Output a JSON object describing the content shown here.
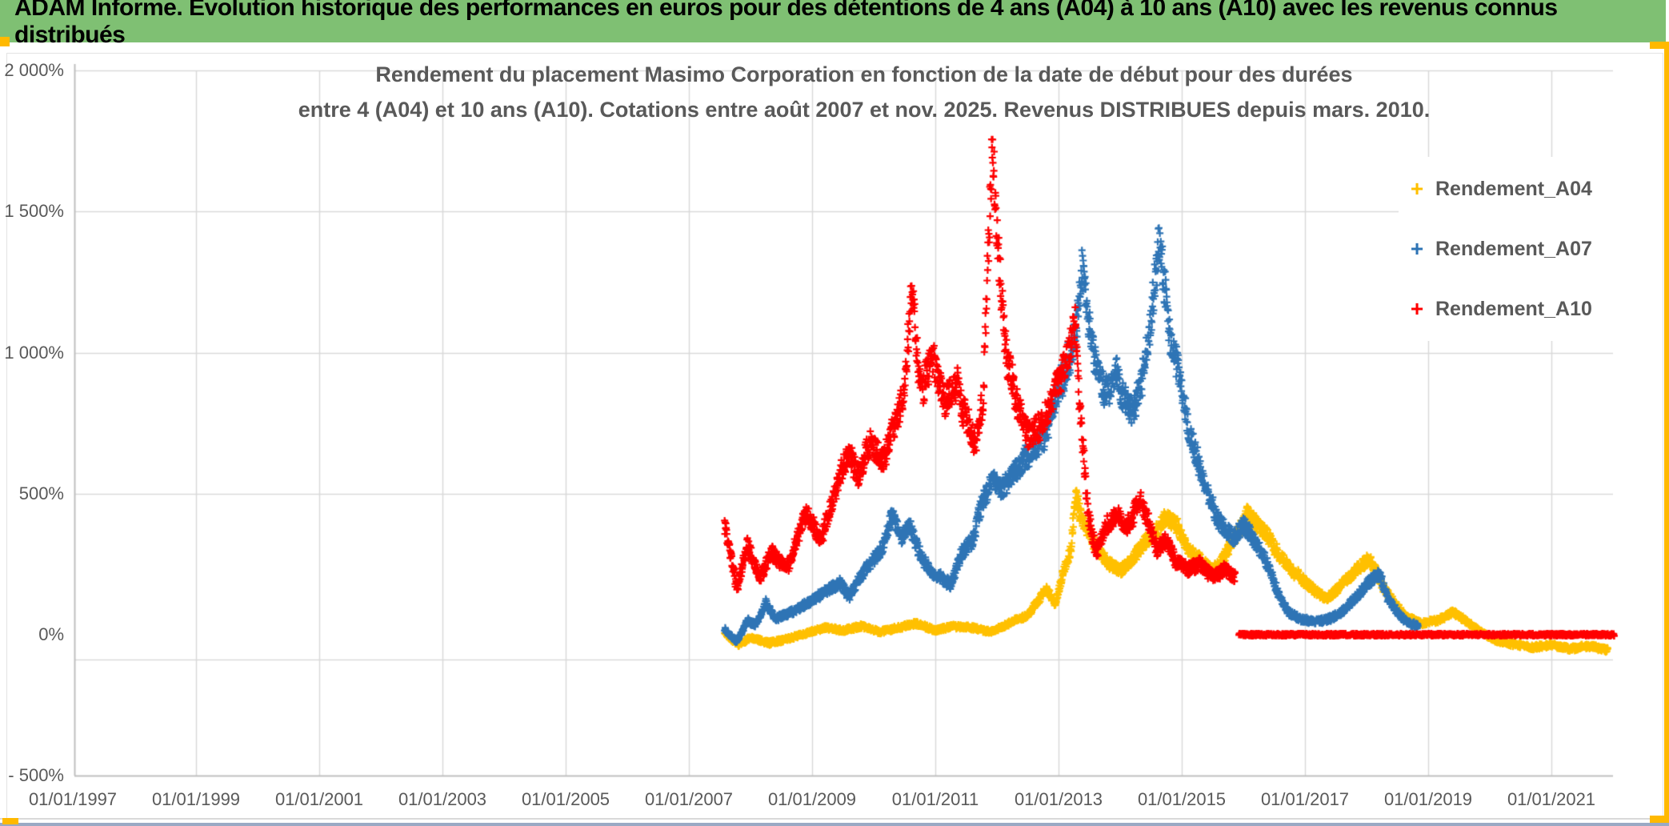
{
  "window": {
    "title_bar": "ADAM Informe. Evolution historique des performances en euros pour des détentions de 4 ans (A04) à 10 ans (A10) avec les revenus connus distribués"
  },
  "chart": {
    "title_line1": "Rendement du placement Masimo Corporation en fonction de la date de début pour des durées",
    "title_line2": "entre 4 (A04) et 10 ans (A10). Cotations entre août 2007 et nov. 2025. Revenus DISTRIBUES depuis mars. 2010.",
    "legend": [
      {
        "label": "Rendement_A04"
      },
      {
        "label": "Rendement_A07"
      },
      {
        "label": "Rendement_A10"
      }
    ]
  },
  "colors": {
    "title_bar_bg": "#7FC073",
    "series_a04": "#FFC000",
    "series_a07": "#2E74B5",
    "series_a10": "#FF0000",
    "axis_text": "#595959",
    "gridline": "#D9D9D9",
    "axis_line": "#BFBFBF",
    "selection_accent": "#FFB900",
    "bottom_strip": "#9AA9C4"
  },
  "chart_data": {
    "type": "scatter",
    "marker": "plus",
    "grid": "on",
    "legend_position": "right",
    "x_axis": {
      "tick_years": [
        1997,
        1999,
        2001,
        2003,
        2005,
        2007,
        2009,
        2011,
        2013,
        2015,
        2017,
        2019,
        2021
      ],
      "tick_labels": [
        "01/01/1997",
        "01/01/1999",
        "01/01/2001",
        "01/01/2003",
        "01/01/2005",
        "01/01/2007",
        "01/01/2009",
        "01/01/2011",
        "01/01/2013",
        "01/01/2015",
        "01/01/2017",
        "01/01/2019",
        "01/01/2021"
      ],
      "range_years": [
        1997,
        2022.1
      ]
    },
    "y_axis": {
      "ticks_pct": [
        2000,
        1500,
        1000,
        500,
        0,
        -500
      ],
      "tick_labels": [
        "2 000%",
        "1 500%",
        "1 000%",
        "500%",
        "0%",
        "- 500%"
      ],
      "range_pct": [
        -500,
        2000
      ],
      "extra_faint_gridline_pct": -88
    },
    "series": [
      {
        "name": "Rendement_A04",
        "color": "#FFC000",
        "seed": 11,
        "points_per_year": 200,
        "jitter_base": 7,
        "jitter_rel": 0.05,
        "anchors": [
          [
            2007.58,
            5
          ],
          [
            2007.8,
            -35
          ],
          [
            2008.0,
            -10
          ],
          [
            2008.3,
            -30
          ],
          [
            2008.6,
            -15
          ],
          [
            2008.9,
            5
          ],
          [
            2009.2,
            25
          ],
          [
            2009.5,
            15
          ],
          [
            2009.8,
            30
          ],
          [
            2010.1,
            10
          ],
          [
            2010.4,
            25
          ],
          [
            2010.7,
            40
          ],
          [
            2011.0,
            15
          ],
          [
            2011.3,
            30
          ],
          [
            2011.6,
            25
          ],
          [
            2011.9,
            10
          ],
          [
            2012.2,
            40
          ],
          [
            2012.5,
            70
          ],
          [
            2012.8,
            160
          ],
          [
            2012.95,
            110
          ],
          [
            2013.1,
            240
          ],
          [
            2013.2,
            300
          ],
          [
            2013.28,
            510
          ],
          [
            2013.36,
            420
          ],
          [
            2013.5,
            350
          ],
          [
            2013.65,
            300
          ],
          [
            2013.8,
            255
          ],
          [
            2014.0,
            225
          ],
          [
            2014.2,
            265
          ],
          [
            2014.4,
            330
          ],
          [
            2014.55,
            360
          ],
          [
            2014.75,
            420
          ],
          [
            2014.95,
            380
          ],
          [
            2015.1,
            300
          ],
          [
            2015.3,
            260
          ],
          [
            2015.5,
            225
          ],
          [
            2015.65,
            260
          ],
          [
            2015.85,
            340
          ],
          [
            2016.05,
            430
          ],
          [
            2016.2,
            395
          ],
          [
            2016.35,
            365
          ],
          [
            2016.5,
            310
          ],
          [
            2016.7,
            250
          ],
          [
            2016.9,
            205
          ],
          [
            2017.1,
            165
          ],
          [
            2017.35,
            125
          ],
          [
            2017.6,
            175
          ],
          [
            2017.85,
            240
          ],
          [
            2018.05,
            265
          ],
          [
            2018.25,
            175
          ],
          [
            2018.45,
            115
          ],
          [
            2018.65,
            60
          ],
          [
            2018.9,
            40
          ],
          [
            2019.15,
            50
          ],
          [
            2019.4,
            80
          ],
          [
            2019.6,
            50
          ],
          [
            2019.85,
            10
          ],
          [
            2020.1,
            -20
          ],
          [
            2020.4,
            -35
          ],
          [
            2020.7,
            -45
          ],
          [
            2021.0,
            -35
          ],
          [
            2021.3,
            -50
          ],
          [
            2021.6,
            -40
          ],
          [
            2021.92,
            -55
          ]
        ]
      },
      {
        "name": "Rendement_A07",
        "color": "#2E74B5",
        "seed": 22,
        "points_per_year": 200,
        "jitter_base": 8,
        "jitter_rel": 0.05,
        "anchors": [
          [
            2007.58,
            20
          ],
          [
            2007.78,
            -25
          ],
          [
            2007.95,
            50
          ],
          [
            2008.1,
            35
          ],
          [
            2008.25,
            115
          ],
          [
            2008.4,
            55
          ],
          [
            2008.6,
            75
          ],
          [
            2008.8,
            95
          ],
          [
            2009.0,
            120
          ],
          [
            2009.2,
            150
          ],
          [
            2009.45,
            185
          ],
          [
            2009.6,
            130
          ],
          [
            2009.8,
            215
          ],
          [
            2010.0,
            260
          ],
          [
            2010.15,
            320
          ],
          [
            2010.3,
            430
          ],
          [
            2010.45,
            340
          ],
          [
            2010.6,
            385
          ],
          [
            2010.75,
            285
          ],
          [
            2010.9,
            230
          ],
          [
            2011.1,
            200
          ],
          [
            2011.25,
            180
          ],
          [
            2011.45,
            295
          ],
          [
            2011.6,
            330
          ],
          [
            2011.75,
            465
          ],
          [
            2011.9,
            540
          ],
          [
            2012.1,
            515
          ],
          [
            2012.3,
            585
          ],
          [
            2012.45,
            620
          ],
          [
            2012.6,
            655
          ],
          [
            2012.75,
            700
          ],
          [
            2012.9,
            800
          ],
          [
            2013.05,
            900
          ],
          [
            2013.2,
            1010
          ],
          [
            2013.3,
            1080
          ],
          [
            2013.38,
            1285
          ],
          [
            2013.47,
            1120
          ],
          [
            2013.6,
            970
          ],
          [
            2013.75,
            870
          ],
          [
            2013.9,
            930
          ],
          [
            2014.05,
            850
          ],
          [
            2014.2,
            780
          ],
          [
            2014.35,
            900
          ],
          [
            2014.5,
            1090
          ],
          [
            2014.58,
            1290
          ],
          [
            2014.63,
            1420
          ],
          [
            2014.72,
            1240
          ],
          [
            2014.82,
            1040
          ],
          [
            2014.95,
            930
          ],
          [
            2015.1,
            740
          ],
          [
            2015.25,
            615
          ],
          [
            2015.4,
            515
          ],
          [
            2015.55,
            430
          ],
          [
            2015.7,
            375
          ],
          [
            2015.85,
            340
          ],
          [
            2016.0,
            395
          ],
          [
            2016.15,
            345
          ],
          [
            2016.3,
            290
          ],
          [
            2016.45,
            215
          ],
          [
            2016.6,
            125
          ],
          [
            2016.75,
            75
          ],
          [
            2016.95,
            55
          ],
          [
            2017.2,
            45
          ],
          [
            2017.45,
            60
          ],
          [
            2017.65,
            90
          ],
          [
            2017.85,
            140
          ],
          [
            2018.05,
            190
          ],
          [
            2018.2,
            215
          ],
          [
            2018.35,
            125
          ],
          [
            2018.5,
            80
          ],
          [
            2018.65,
            45
          ],
          [
            2018.84,
            30
          ]
        ]
      },
      {
        "name": "Rendement_A10",
        "color": "#FF0000",
        "seed": 33,
        "points_per_year": 200,
        "jitter_base": 10,
        "jitter_rel": 0.05,
        "anchors": [
          [
            2007.58,
            390
          ],
          [
            2007.78,
            160
          ],
          [
            2007.95,
            320
          ],
          [
            2008.15,
            200
          ],
          [
            2008.35,
            290
          ],
          [
            2008.6,
            230
          ],
          [
            2008.9,
            430
          ],
          [
            2009.15,
            340
          ],
          [
            2009.4,
            520
          ],
          [
            2009.6,
            650
          ],
          [
            2009.75,
            560
          ],
          [
            2009.95,
            690
          ],
          [
            2010.15,
            600
          ],
          [
            2010.35,
            760
          ],
          [
            2010.5,
            860
          ],
          [
            2010.58,
            1110
          ],
          [
            2010.63,
            1240
          ],
          [
            2010.72,
            950
          ],
          [
            2010.8,
            880
          ],
          [
            2010.95,
            1000
          ],
          [
            2011.15,
            830
          ],
          [
            2011.35,
            890
          ],
          [
            2011.5,
            770
          ],
          [
            2011.65,
            670
          ],
          [
            2011.78,
            830
          ],
          [
            2011.87,
            1420
          ],
          [
            2011.93,
            1760
          ],
          [
            2012.0,
            1430
          ],
          [
            2012.08,
            1230
          ],
          [
            2012.15,
            1000
          ],
          [
            2012.3,
            830
          ],
          [
            2012.5,
            700
          ],
          [
            2012.7,
            740
          ],
          [
            2012.9,
            830
          ],
          [
            2013.1,
            950
          ],
          [
            2013.27,
            1110
          ],
          [
            2013.38,
            700
          ],
          [
            2013.48,
            420
          ],
          [
            2013.62,
            290
          ],
          [
            2013.78,
            390
          ],
          [
            2013.95,
            430
          ],
          [
            2014.1,
            380
          ],
          [
            2014.3,
            480
          ],
          [
            2014.45,
            400
          ],
          [
            2014.6,
            300
          ],
          [
            2014.75,
            330
          ],
          [
            2014.9,
            260
          ],
          [
            2015.1,
            230
          ],
          [
            2015.3,
            250
          ],
          [
            2015.5,
            210
          ],
          [
            2015.7,
            230
          ],
          [
            2015.87,
            200
          ]
        ],
        "zero_tail": {
          "from": 2015.93,
          "value_pct": 0
        }
      }
    ]
  }
}
